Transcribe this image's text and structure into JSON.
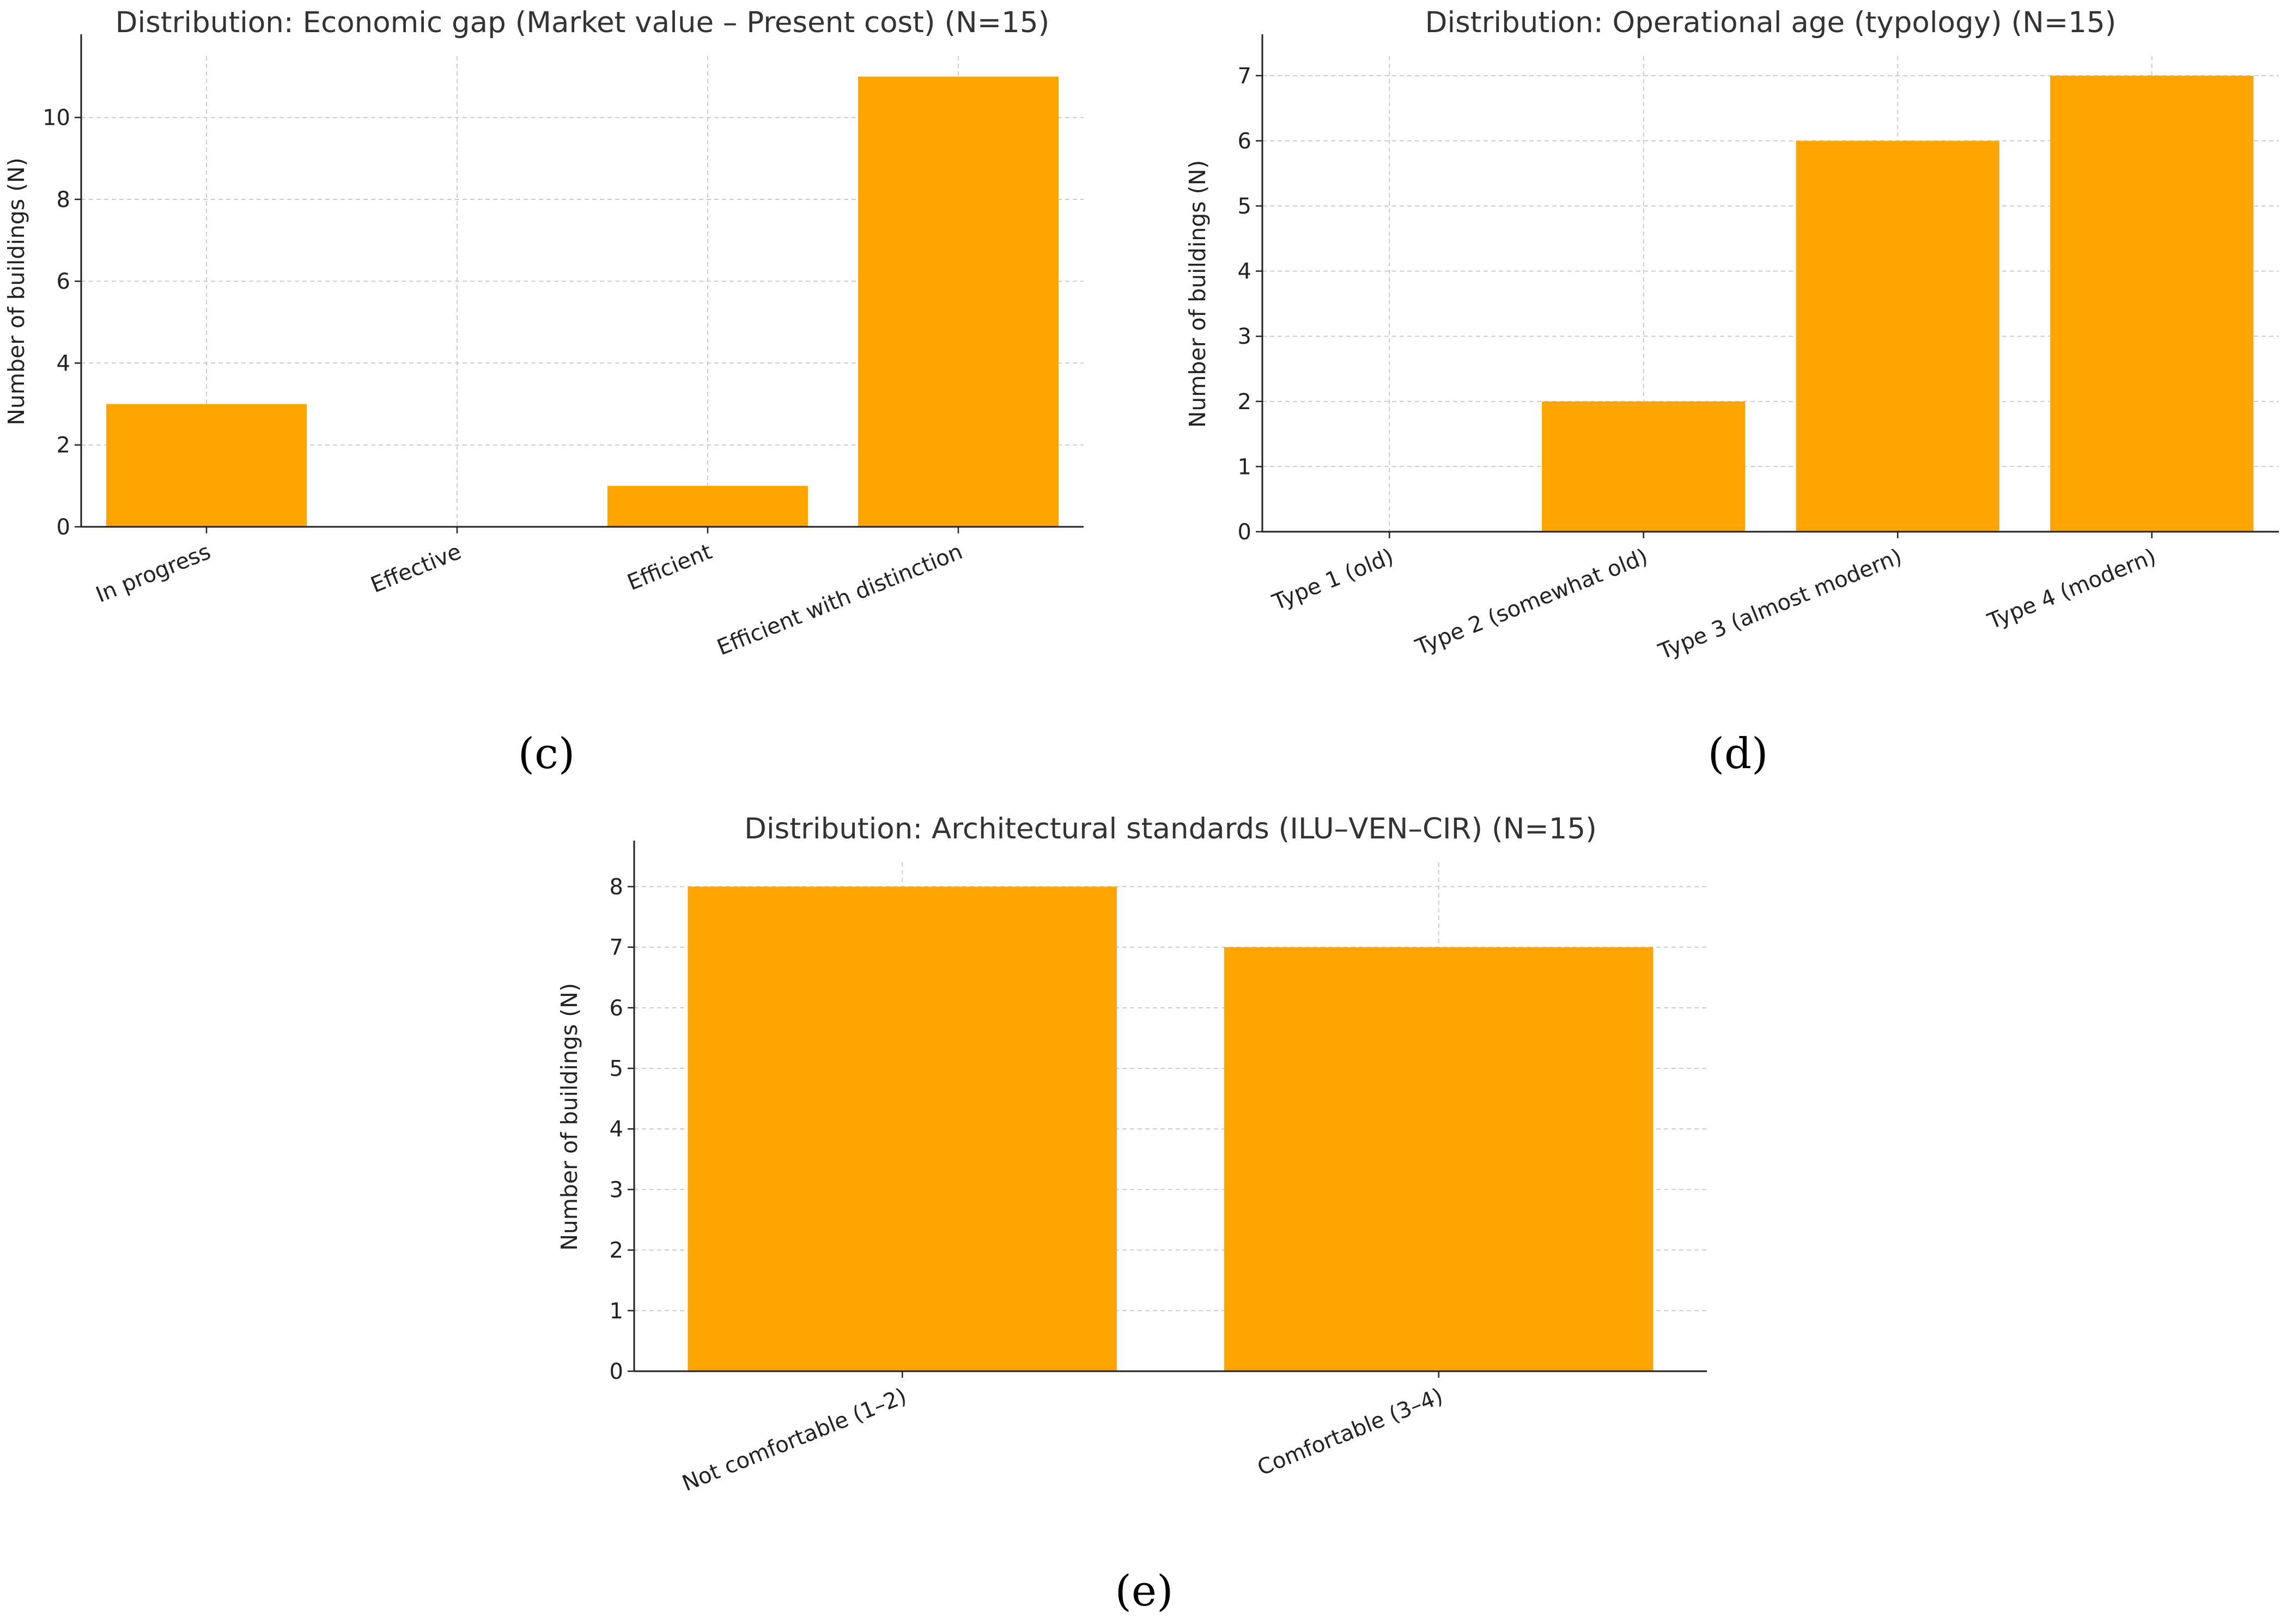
{
  "bar_color": "#FFA500",
  "chart_data": [
    {
      "type": "bar",
      "title": "Distribution: Economic gap (Market value – Present cost) (N=15)",
      "xlabel": "",
      "ylabel": "Number of buildings (N)",
      "categories": [
        "In progress",
        "Effective",
        "Efficient",
        "Efficient with distinction"
      ],
      "values": [
        3,
        0,
        1,
        11
      ],
      "ylim": [
        0,
        11.5
      ],
      "yticks": [
        0,
        2,
        4,
        6,
        8,
        10
      ],
      "grid": true,
      "panel_label": "(c)"
    },
    {
      "type": "bar",
      "title": "Distribution: Operational age (typology) (N=15)",
      "xlabel": "",
      "ylabel": "Number of buildings (N)",
      "categories": [
        "Type 1 (old)",
        "Type 2 (somewhat old)",
        "Type 3 (almost modern)",
        "Type 4 (modern)"
      ],
      "values": [
        0,
        2,
        6,
        7
      ],
      "ylim": [
        0,
        7.3
      ],
      "yticks": [
        0,
        1,
        2,
        3,
        4,
        5,
        6,
        7
      ],
      "grid": true,
      "panel_label": "(d)"
    },
    {
      "type": "bar",
      "title": "Distribution: Architectural standards (ILU–VEN–CIR) (N=15)",
      "xlabel": "",
      "ylabel": "Number of buildings (N)",
      "categories": [
        "Not comfortable (1–2)",
        "Comfortable (3–4)"
      ],
      "values": [
        8,
        7
      ],
      "ylim": [
        0,
        8.4
      ],
      "yticks": [
        0,
        1,
        2,
        3,
        4,
        5,
        6,
        7,
        8
      ],
      "grid": true,
      "panel_label": "(e)"
    }
  ]
}
